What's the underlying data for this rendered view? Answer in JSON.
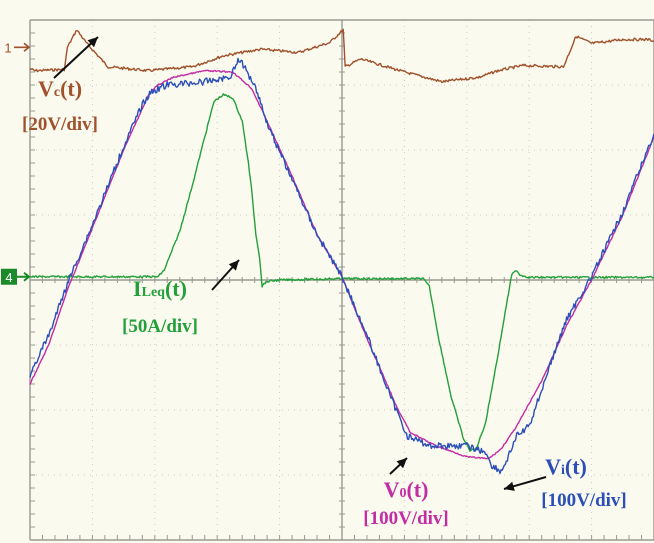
{
  "chart_data": {
    "type": "line",
    "title": "",
    "xlabel": "",
    "ylabel": "",
    "grid": true,
    "background_color": "#fbfaef",
    "grid_color": "#c9c9c0",
    "time_divisions": 10,
    "amplitude_divisions": 8,
    "channel_markers": [
      {
        "label": "1",
        "color": "#a0522d",
        "divisions_from_top": 0.42
      },
      {
        "label": "4",
        "color": "#1a8a2a",
        "divisions_from_top": 3.95
      }
    ],
    "series": [
      {
        "key": "vc",
        "label_main": "V",
        "label_sub": "c",
        "label_paren": "(t)",
        "scale": "[20V/div]",
        "color": "#a0522d",
        "points": [
          [
            0.0,
            0.75
          ],
          [
            0.07,
            0.78
          ],
          [
            0.55,
            0.76
          ],
          [
            0.6,
            0.42
          ],
          [
            0.75,
            0.15
          ],
          [
            0.9,
            0.35
          ],
          [
            1.25,
            0.72
          ],
          [
            1.9,
            0.78
          ],
          [
            2.6,
            0.72
          ],
          [
            3.1,
            0.55
          ],
          [
            3.7,
            0.45
          ],
          [
            4.3,
            0.5
          ],
          [
            4.8,
            0.35
          ],
          [
            5.02,
            0.15
          ],
          [
            5.05,
            0.72
          ],
          [
            5.3,
            0.6
          ],
          [
            6.0,
            0.8
          ],
          [
            6.6,
            0.95
          ],
          [
            7.2,
            0.88
          ],
          [
            7.5,
            0.78
          ],
          [
            7.9,
            0.7
          ],
          [
            8.55,
            0.72
          ],
          [
            8.75,
            0.25
          ],
          [
            9.0,
            0.36
          ],
          [
            9.5,
            0.3
          ],
          [
            9.9,
            0.3
          ],
          [
            10.0,
            0.32
          ]
        ]
      },
      {
        "key": "vo",
        "label_main": "V",
        "label_sub": "0",
        "label_paren": "(t)",
        "scale": "[100V/div]",
        "color": "#c42ca3",
        "points": [
          [
            0.0,
            5.6
          ],
          [
            0.3,
            5.0
          ],
          [
            0.6,
            4.15
          ],
          [
            1.0,
            3.2
          ],
          [
            1.5,
            2.0
          ],
          [
            1.9,
            1.15
          ],
          [
            2.05,
            1.0
          ],
          [
            2.3,
            0.88
          ],
          [
            2.8,
            0.78
          ],
          [
            3.25,
            0.8
          ],
          [
            3.55,
            1.05
          ],
          [
            3.7,
            1.35
          ],
          [
            4.2,
            2.4
          ],
          [
            4.6,
            3.3
          ],
          [
            5.0,
            3.95
          ],
          [
            5.4,
            4.9
          ],
          [
            5.9,
            6.0
          ],
          [
            6.1,
            6.35
          ],
          [
            6.5,
            6.55
          ],
          [
            7.0,
            6.72
          ],
          [
            7.35,
            6.75
          ],
          [
            7.55,
            6.6
          ],
          [
            7.8,
            6.25
          ],
          [
            8.2,
            5.55
          ],
          [
            8.6,
            4.7
          ],
          [
            9.0,
            4.0
          ],
          [
            9.5,
            3.0
          ],
          [
            10.0,
            1.8
          ]
        ]
      },
      {
        "key": "vi",
        "label_main": "V",
        "label_sub": "i",
        "label_paren": "(t)",
        "scale": "[100V/div]",
        "color": "#2b4fb8",
        "points": [
          [
            0.0,
            5.45
          ],
          [
            0.3,
            4.85
          ],
          [
            0.6,
            4.05
          ],
          [
            1.0,
            3.15
          ],
          [
            1.5,
            1.95
          ],
          [
            1.8,
            1.3
          ],
          [
            1.95,
            1.1
          ],
          [
            2.2,
            1.0
          ],
          [
            2.8,
            0.95
          ],
          [
            3.2,
            0.88
          ],
          [
            3.35,
            0.6
          ],
          [
            3.45,
            0.75
          ],
          [
            3.6,
            1.0
          ],
          [
            3.68,
            1.2
          ],
          [
            3.75,
            1.45
          ],
          [
            3.85,
            1.7
          ],
          [
            4.2,
            2.45
          ],
          [
            4.6,
            3.3
          ],
          [
            5.0,
            3.95
          ],
          [
            5.4,
            4.85
          ],
          [
            5.8,
            5.85
          ],
          [
            6.05,
            6.4
          ],
          [
            6.4,
            6.55
          ],
          [
            7.0,
            6.55
          ],
          [
            7.3,
            6.65
          ],
          [
            7.4,
            6.85
          ],
          [
            7.55,
            6.95
          ],
          [
            7.65,
            6.75
          ],
          [
            7.8,
            6.4
          ],
          [
            8.0,
            6.25
          ],
          [
            8.3,
            5.4
          ],
          [
            8.6,
            4.6
          ],
          [
            9.0,
            3.95
          ],
          [
            9.5,
            2.95
          ],
          [
            10.0,
            1.75
          ]
        ]
      },
      {
        "key": "ileq",
        "label_main": "I",
        "label_sub": "Leq",
        "label_paren": "(t)",
        "scale": "[50A/div]",
        "color": "#23a03a",
        "points": [
          [
            0.0,
            3.95
          ],
          [
            2.05,
            3.95
          ],
          [
            2.15,
            3.85
          ],
          [
            2.4,
            3.25
          ],
          [
            2.6,
            2.55
          ],
          [
            2.8,
            1.8
          ],
          [
            2.95,
            1.25
          ],
          [
            3.1,
            1.15
          ],
          [
            3.25,
            1.2
          ],
          [
            3.4,
            1.55
          ],
          [
            3.5,
            2.2
          ],
          [
            3.55,
            2.6
          ],
          [
            3.62,
            3.3
          ],
          [
            3.68,
            3.65
          ],
          [
            3.72,
            4.1
          ],
          [
            3.75,
            4.05
          ],
          [
            3.82,
            4.02
          ],
          [
            4.0,
            4.0
          ],
          [
            5.0,
            3.98
          ],
          [
            6.3,
            3.98
          ],
          [
            6.4,
            4.1
          ],
          [
            6.55,
            4.9
          ],
          [
            6.75,
            5.8
          ],
          [
            6.95,
            6.45
          ],
          [
            7.05,
            6.62
          ],
          [
            7.15,
            6.6
          ],
          [
            7.3,
            6.2
          ],
          [
            7.5,
            5.15
          ],
          [
            7.65,
            4.3
          ],
          [
            7.72,
            3.92
          ],
          [
            7.8,
            3.85
          ],
          [
            7.85,
            3.92
          ],
          [
            8.0,
            3.96
          ],
          [
            10.0,
            3.96
          ]
        ]
      }
    ],
    "annotations": [
      {
        "series": "vc",
        "text_position": "left-top"
      },
      {
        "series": "ileq",
        "text_position": "center-left"
      },
      {
        "series": "vo",
        "text_position": "bottom-center"
      },
      {
        "series": "vi",
        "text_position": "bottom-right"
      }
    ]
  }
}
